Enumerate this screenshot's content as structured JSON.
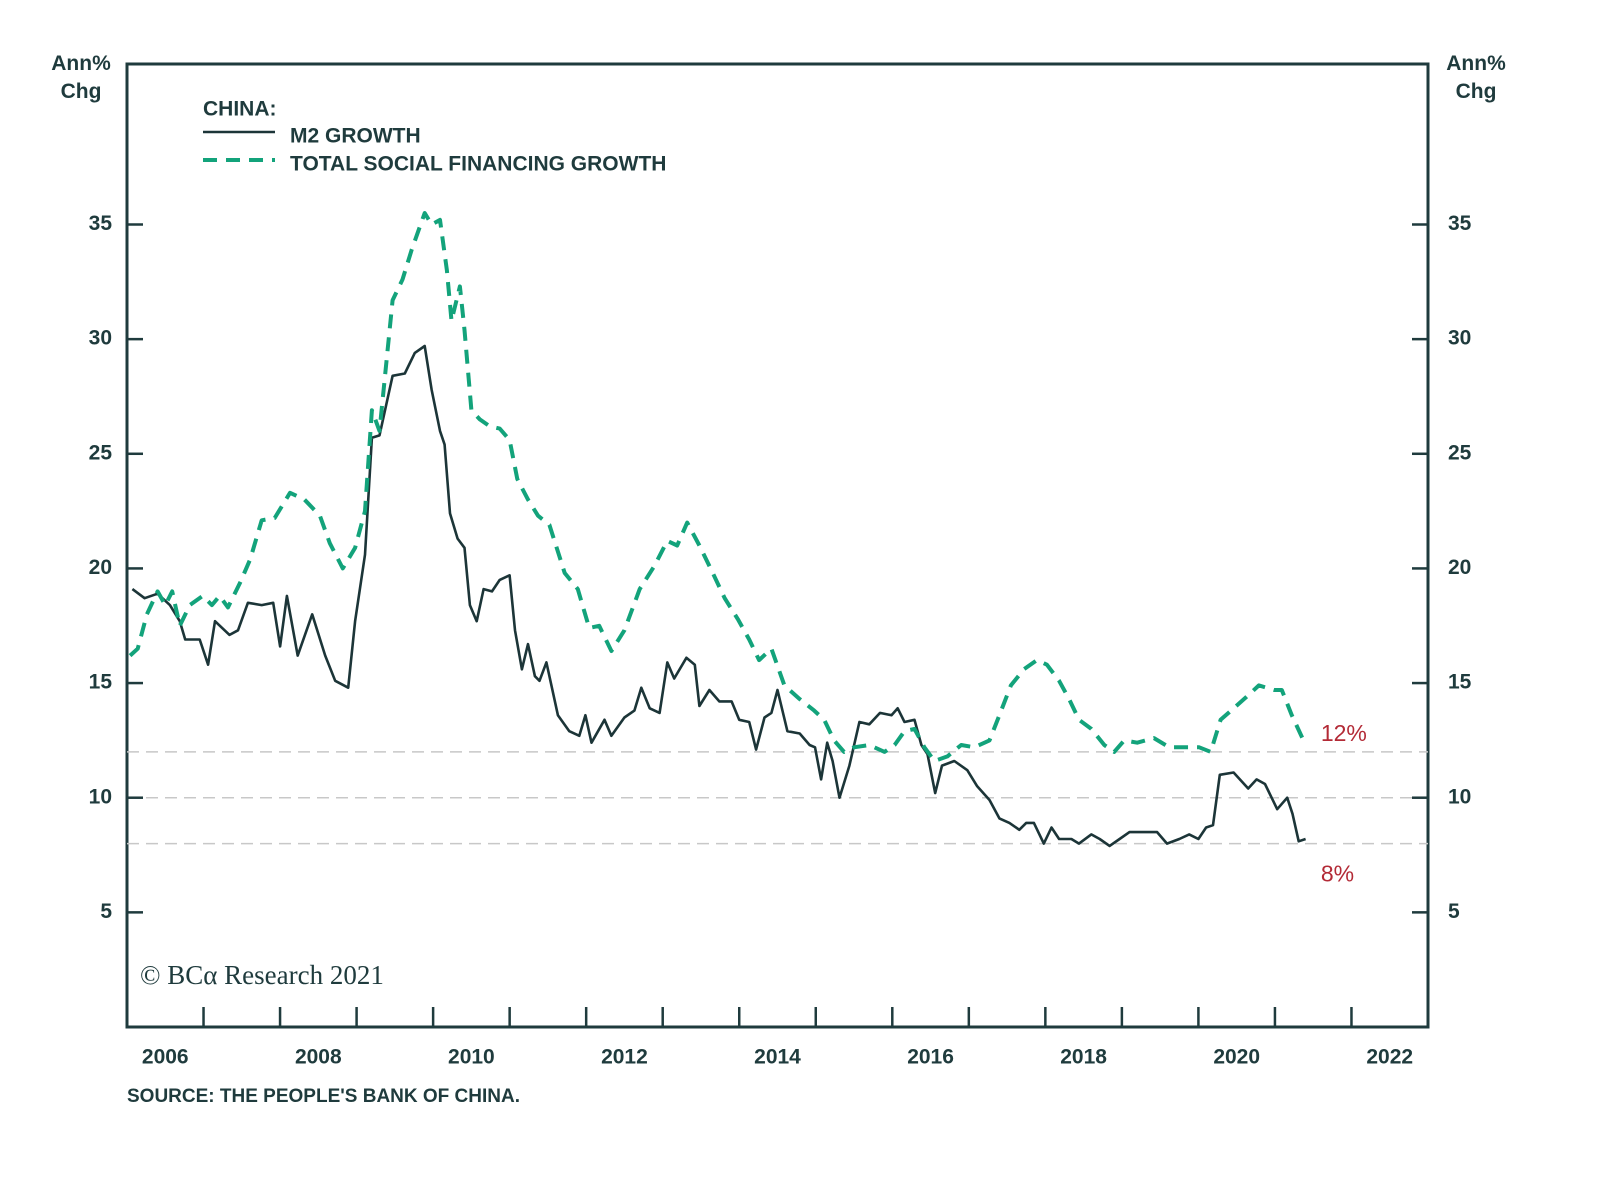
{
  "chart_data": {
    "type": "line",
    "legend_title": "CHINA:",
    "ylabel": "Ann% Chg",
    "y2label": "Ann% Chg",
    "source": "SOURCE: THE PEOPLE'S BANK OF CHINA.",
    "watermark": "© BCα Research 2021",
    "xlim": [
      2006,
      2023
    ],
    "xticks": [
      2007,
      2008,
      2009,
      2010,
      2011,
      2012,
      2013,
      2014,
      2015,
      2016,
      2017,
      2018,
      2019,
      2020,
      2021,
      2022
    ],
    "xtick_labels": [
      {
        "value": 2006.5,
        "label": "2006"
      },
      {
        "value": 2008.5,
        "label": "2008"
      },
      {
        "value": 2010.5,
        "label": "2010"
      },
      {
        "value": 2012.5,
        "label": "2012"
      },
      {
        "value": 2014.5,
        "label": "2014"
      },
      {
        "value": 2016.5,
        "label": "2016"
      },
      {
        "value": 2018.5,
        "label": "2018"
      },
      {
        "value": 2020.5,
        "label": "2020"
      },
      {
        "value": 2022.5,
        "label": "2022"
      }
    ],
    "ylim": [
      0,
      42
    ],
    "yticks": [
      5,
      10,
      15,
      20,
      25,
      30,
      35
    ],
    "y2lim": [
      0,
      42
    ],
    "y2ticks": [
      5,
      10,
      15,
      20,
      25,
      30,
      35
    ],
    "reference_lines": [
      12,
      10,
      8
    ],
    "annotations": [
      {
        "text": "12%",
        "value": 12,
        "x": 2021.6,
        "color": "#b32a36"
      },
      {
        "text": "8%",
        "value": 8,
        "x": 2021.6,
        "color": "#b32a36"
      }
    ],
    "series": [
      {
        "name": "M2 GROWTH",
        "color": "#1c3538",
        "dash": false,
        "x": [
          2006.07,
          2006.23,
          2006.4,
          2006.56,
          2006.69,
          2006.76,
          2006.95,
          2007.06,
          2007.15,
          2007.34,
          2007.45,
          2007.58,
          2007.76,
          2007.91,
          2008.0,
          2008.09,
          2008.23,
          2008.42,
          2008.59,
          2008.72,
          2008.89,
          2008.98,
          2009.11,
          2009.2,
          2009.3,
          2009.47,
          2009.63,
          2009.76,
          2009.89,
          2009.98,
          2010.09,
          2010.15,
          2010.22,
          2010.32,
          2010.41,
          2010.48,
          2010.57,
          2010.66,
          2010.77,
          2010.87,
          2011.0,
          2011.07,
          2011.16,
          2011.24,
          2011.33,
          2011.39,
          2011.48,
          2011.63,
          2011.78,
          2011.91,
          2011.99,
          2012.07,
          2012.24,
          2012.33,
          2012.5,
          2012.63,
          2012.72,
          2012.83,
          2012.96,
          2013.06,
          2013.15,
          2013.31,
          2013.42,
          2013.48,
          2013.61,
          2013.74,
          2013.9,
          2014.0,
          2014.13,
          2014.22,
          2014.33,
          2014.42,
          2014.5,
          2014.63,
          2014.79,
          2014.92,
          2014.99,
          2015.07,
          2015.15,
          2015.22,
          2015.31,
          2015.44,
          2015.57,
          2015.7,
          2015.84,
          2015.99,
          2016.07,
          2016.16,
          2016.29,
          2016.38,
          2016.46,
          2016.56,
          2016.65,
          2016.81,
          2016.98,
          2017.11,
          2017.27,
          2017.4,
          2017.53,
          2017.66,
          2017.75,
          2017.85,
          2017.98,
          2018.08,
          2018.18,
          2018.34,
          2018.44,
          2018.6,
          2018.71,
          2018.84,
          2018.97,
          2019.1,
          2019.29,
          2019.46,
          2019.59,
          2019.75,
          2019.88,
          2020.0,
          2020.1,
          2020.19,
          2020.28,
          2020.46,
          2020.65,
          2020.76,
          2020.87,
          2021.03,
          2021.16,
          2021.23,
          2021.31,
          2021.4
        ],
        "values": [
          19.1,
          18.7,
          18.9,
          18.4,
          17.7,
          16.9,
          16.9,
          15.8,
          17.7,
          17.1,
          17.3,
          18.5,
          18.4,
          18.5,
          16.6,
          18.8,
          16.2,
          18.0,
          16.2,
          15.1,
          14.8,
          17.7,
          20.6,
          25.7,
          25.8,
          28.4,
          28.5,
          29.4,
          29.7,
          27.8,
          26.0,
          25.4,
          22.4,
          21.3,
          20.9,
          18.4,
          17.7,
          19.1,
          19.0,
          19.5,
          19.7,
          17.3,
          15.6,
          16.7,
          15.3,
          15.1,
          15.9,
          13.6,
          12.9,
          12.7,
          13.6,
          12.4,
          13.4,
          12.7,
          13.5,
          13.8,
          14.8,
          13.9,
          13.7,
          15.9,
          15.2,
          16.1,
          15.8,
          14.0,
          14.7,
          14.2,
          14.2,
          13.4,
          13.3,
          12.1,
          13.5,
          13.7,
          14.7,
          12.9,
          12.8,
          12.3,
          12.2,
          10.8,
          12.4,
          11.6,
          10.0,
          11.4,
          13.3,
          13.2,
          13.7,
          13.6,
          13.9,
          13.3,
          13.4,
          12.3,
          11.9,
          10.2,
          11.4,
          11.6,
          11.2,
          10.5,
          9.9,
          9.1,
          8.9,
          8.6,
          8.9,
          8.9,
          8.0,
          8.7,
          8.2,
          8.2,
          8.0,
          8.4,
          8.2,
          7.9,
          8.2,
          8.5,
          8.5,
          8.5,
          8.0,
          8.2,
          8.4,
          8.2,
          8.7,
          8.8,
          11.0,
          11.1,
          10.4,
          10.8,
          10.6,
          9.5,
          10.0,
          9.3,
          8.1,
          8.2
        ]
      },
      {
        "name": "TOTAL SOCIAL FINANCING GROWTH",
        "color": "#13a37b",
        "dash": true,
        "x": [
          2006.04,
          2006.14,
          2006.26,
          2006.4,
          2006.5,
          2006.59,
          2006.69,
          2006.82,
          2006.99,
          2007.11,
          2007.21,
          2007.32,
          2007.48,
          2007.61,
          2007.76,
          2007.93,
          2008.13,
          2008.32,
          2008.52,
          2008.65,
          2008.82,
          2008.98,
          2009.11,
          2009.2,
          2009.3,
          2009.47,
          2009.6,
          2009.72,
          2009.89,
          2009.98,
          2010.09,
          2010.18,
          2010.24,
          2010.35,
          2010.41,
          2010.5,
          2010.61,
          2010.74,
          2010.87,
          2011.0,
          2011.1,
          2011.24,
          2011.37,
          2011.52,
          2011.72,
          2011.89,
          2012.04,
          2012.17,
          2012.33,
          2012.5,
          2012.7,
          2012.89,
          2013.06,
          2013.19,
          2013.32,
          2013.48,
          2013.64,
          2013.81,
          2013.98,
          2014.13,
          2014.26,
          2014.42,
          2014.59,
          2014.79,
          2014.98,
          2015.11,
          2015.24,
          2015.37,
          2015.5,
          2015.7,
          2015.9,
          2016.03,
          2016.16,
          2016.29,
          2016.42,
          2016.55,
          2016.72,
          2016.9,
          2017.07,
          2017.27,
          2017.4,
          2017.55,
          2017.72,
          2017.89,
          2018.02,
          2018.18,
          2018.31,
          2018.44,
          2018.6,
          2018.77,
          2018.9,
          2019.03,
          2019.2,
          2019.42,
          2019.62,
          2019.81,
          2020.01,
          2020.16,
          2020.29,
          2020.46,
          2020.63,
          2020.79,
          2020.99,
          2021.09,
          2021.22,
          2021.4
        ],
        "values": [
          16.2,
          16.5,
          18.0,
          19.0,
          18.4,
          19.0,
          17.5,
          18.4,
          18.8,
          18.4,
          18.8,
          18.3,
          19.4,
          20.4,
          22.1,
          22.2,
          23.3,
          23.0,
          22.3,
          21.1,
          20.0,
          20.9,
          22.5,
          26.9,
          26.0,
          31.7,
          32.6,
          33.9,
          35.5,
          35.0,
          35.2,
          33.0,
          30.8,
          32.3,
          30.4,
          26.9,
          26.5,
          26.2,
          26.1,
          25.6,
          23.9,
          23.0,
          22.3,
          21.9,
          19.8,
          19.1,
          17.4,
          17.5,
          16.4,
          17.3,
          19.1,
          20.1,
          21.2,
          21.0,
          22.0,
          21.0,
          19.9,
          18.7,
          17.8,
          16.9,
          16.0,
          16.5,
          14.9,
          14.3,
          13.8,
          13.4,
          12.5,
          12.0,
          12.2,
          12.3,
          12.0,
          12.3,
          12.9,
          13.0,
          12.2,
          11.6,
          11.8,
          12.3,
          12.2,
          12.5,
          13.6,
          14.9,
          15.6,
          16.0,
          15.8,
          15.1,
          14.3,
          13.4,
          13.0,
          12.3,
          12.0,
          12.5,
          12.4,
          12.6,
          12.2,
          12.2,
          12.2,
          12.0,
          13.4,
          13.9,
          14.4,
          14.9,
          14.7,
          14.7,
          13.6,
          12.3
        ]
      }
    ]
  }
}
